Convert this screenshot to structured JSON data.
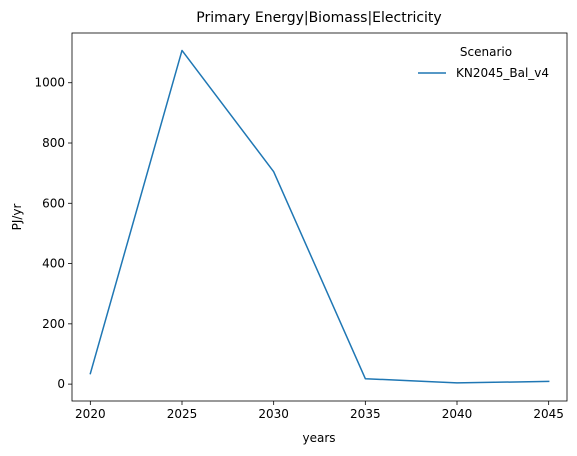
{
  "chart_data": {
    "type": "line",
    "title": "Primary Energy|Biomass|Electricity",
    "xlabel": "years",
    "ylabel": "PJ/yr",
    "x": [
      2020,
      2025,
      2030,
      2035,
      2040,
      2045
    ],
    "xlim": [
      2019,
      2046
    ],
    "ylim": [
      -56,
      1165
    ],
    "yticks": [
      0,
      200,
      400,
      600,
      800,
      1000
    ],
    "grid": false,
    "legend": {
      "title": "Scenario",
      "placement": "top-right"
    },
    "series": [
      {
        "name": "KN2045_Bal_v4",
        "color": "#1f77b4",
        "values": [
          35,
          1107,
          705,
          18,
          4,
          9
        ]
      }
    ]
  }
}
